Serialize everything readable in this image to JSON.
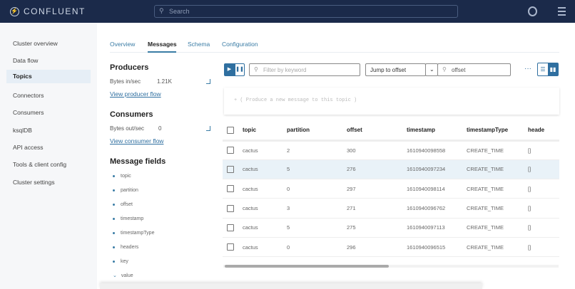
{
  "header": {
    "brand": "CONFLUENT",
    "search_placeholder": "Search"
  },
  "sidebar": {
    "items": [
      {
        "label": "Cluster overview"
      },
      {
        "label": "Data flow"
      },
      {
        "label": "Topics",
        "active": true
      },
      {
        "label": "Connectors"
      },
      {
        "label": "Consumers"
      },
      {
        "label": "ksqlDB"
      },
      {
        "label": "API access"
      },
      {
        "label": "Tools & client config"
      },
      {
        "label": "Cluster settings"
      }
    ]
  },
  "tabs": [
    {
      "label": "Overview"
    },
    {
      "label": "Messages",
      "active": true
    },
    {
      "label": "Schema"
    },
    {
      "label": "Configuration"
    }
  ],
  "producers": {
    "title": "Producers",
    "metric_label": "Bytes in/sec",
    "metric_value": "1.21K",
    "link": "View producer flow"
  },
  "consumers": {
    "title": "Consumers",
    "metric_label": "Bytes out/sec",
    "metric_value": "0",
    "link": "View consumer flow"
  },
  "message_fields": {
    "title": "Message fields",
    "items": [
      "topic",
      "partition",
      "offset",
      "timestamp",
      "timestampType",
      "headers",
      "key"
    ],
    "expanded": "value"
  },
  "toolbar": {
    "filter_placeholder": "Filter by keyword",
    "jump_select": "Jump to offset",
    "offset_placeholder": "offset",
    "more": "···"
  },
  "produce_prompt": "+ ( Produce a new message to this topic )",
  "table": {
    "columns": [
      "topic",
      "partition",
      "offset",
      "timestamp",
      "timestampType",
      "heade"
    ],
    "rows": [
      [
        "cactus",
        "2",
        "300",
        "1610940098558",
        "CREATE_TIME",
        "[]"
      ],
      [
        "cactus",
        "5",
        "276",
        "1610940097234",
        "CREATE_TIME",
        "[]"
      ],
      [
        "cactus",
        "0",
        "297",
        "1610940098114",
        "CREATE_TIME",
        "[]"
      ],
      [
        "cactus",
        "3",
        "271",
        "1610940096762",
        "CREATE_TIME",
        "[]"
      ],
      [
        "cactus",
        "5",
        "275",
        "1610940097113",
        "CREATE_TIME",
        "[]"
      ],
      [
        "cactus",
        "0",
        "296",
        "1610940096515",
        "CREATE_TIME",
        "[]"
      ]
    ],
    "highlighted_row": 1
  },
  "colors": {
    "header_bg": "#1b2a4a",
    "accent": "#2f6fa0",
    "row_highlight": "#e9f2f8"
  }
}
